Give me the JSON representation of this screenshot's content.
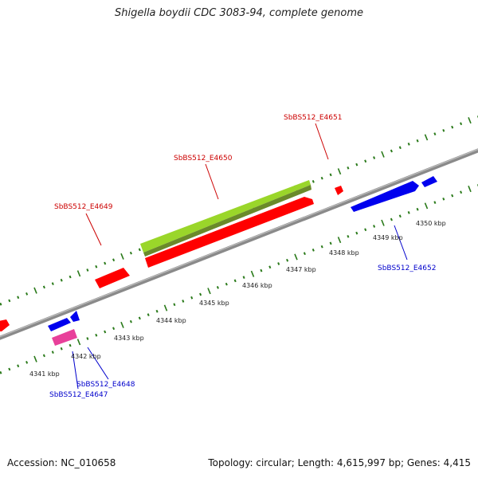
{
  "title": "Shigella boydii CDC 3083-94, complete genome",
  "footer": {
    "accession": "Accession: NC_010658",
    "summary": "Topology: circular; Length: 4,615,997 bp; Genes: 4,415"
  },
  "colors": {
    "backbone": "#8a8a8a",
    "tick": "#2a7a1a",
    "forward_label": "#cc0000",
    "reverse_label": "#0000cc",
    "cds_forward": "#ff0000",
    "cds_reverse": "#0000ee",
    "trna": "#9ad62a",
    "trna_shadow": "#6a8a2a",
    "other": "#e8409a"
  },
  "scale_labels": [
    "4341 kbp",
    "4342 kbp",
    "4343 kbp",
    "4344 kbp",
    "4345 kbp",
    "4346 kbp",
    "4347 kbp",
    "4348 kbp",
    "4349 kbp",
    "4350 kbp"
  ],
  "gene_labels": [
    {
      "text": "SbBS512_E4649",
      "strand": "forward"
    },
    {
      "text": "SbBS512_E4650",
      "strand": "forward"
    },
    {
      "text": "SbBS512_E4651",
      "strand": "forward"
    },
    {
      "text": "SbBS512_E4652",
      "strand": "reverse"
    },
    {
      "text": "SbBS512_E4648",
      "strand": "reverse"
    },
    {
      "text": "SbBS512_E4647",
      "strand": "reverse"
    }
  ]
}
